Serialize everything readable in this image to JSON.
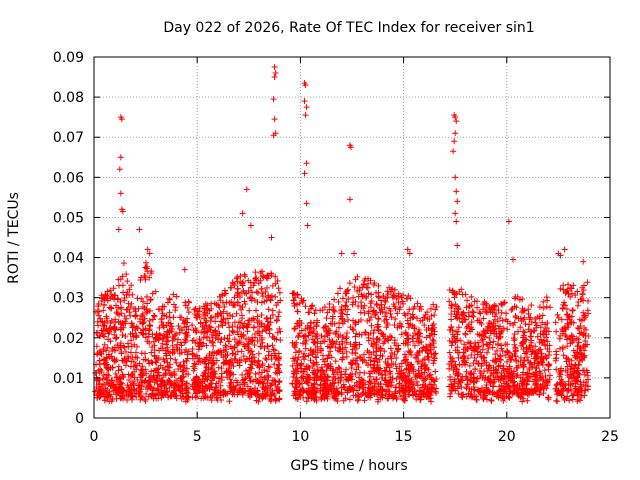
{
  "chart_data": {
    "type": "scatter",
    "title": "Day 022 of 2026, Rate Of TEC Index for receiver sin1",
    "xlabel": "GPS time / hours",
    "ylabel": "ROTI / TECUs",
    "xlim": [
      0,
      25
    ],
    "ylim": [
      0,
      0.09
    ],
    "xticks": [
      0,
      5,
      10,
      15,
      20,
      25
    ],
    "xtick_labels": [
      "0",
      "5",
      "10",
      "15",
      "20",
      "25"
    ],
    "yticks": [
      0,
      0.01,
      0.02,
      0.03,
      0.04,
      0.05,
      0.06,
      0.07,
      0.08,
      0.09
    ],
    "ytick_labels": [
      "0",
      "0.01",
      "0.02",
      "0.03",
      "0.04",
      "0.05",
      "0.06",
      "0.07",
      "0.08",
      "0.09"
    ],
    "grid": true,
    "marker": "+",
    "color": "#ff0000",
    "data_extent_hours": [
      0.05,
      23.95
    ],
    "data_gaps_hours": [
      [
        4.6,
        4.75
      ],
      [
        9.05,
        9.6
      ],
      [
        10.85,
        10.95
      ],
      [
        16.6,
        17.2
      ],
      [
        22.1,
        22.35
      ]
    ],
    "typical_band": [
      0.005,
      0.025
    ],
    "notable_points": [
      {
        "x": 1.3,
        "y": 0.075
      },
      {
        "x": 1.35,
        "y": 0.0745
      },
      {
        "x": 1.3,
        "y": 0.065
      },
      {
        "x": 1.25,
        "y": 0.062
      },
      {
        "x": 1.3,
        "y": 0.056
      },
      {
        "x": 1.35,
        "y": 0.052
      },
      {
        "x": 1.4,
        "y": 0.0515
      },
      {
        "x": 1.2,
        "y": 0.047
      },
      {
        "x": 2.2,
        "y": 0.047
      },
      {
        "x": 2.6,
        "y": 0.042
      },
      {
        "x": 2.7,
        "y": 0.041
      },
      {
        "x": 4.4,
        "y": 0.037
      },
      {
        "x": 7.4,
        "y": 0.057
      },
      {
        "x": 7.2,
        "y": 0.051
      },
      {
        "x": 7.6,
        "y": 0.048
      },
      {
        "x": 8.75,
        "y": 0.0875
      },
      {
        "x": 8.8,
        "y": 0.086
      },
      {
        "x": 8.75,
        "y": 0.085
      },
      {
        "x": 8.7,
        "y": 0.0795
      },
      {
        "x": 8.75,
        "y": 0.0745
      },
      {
        "x": 8.8,
        "y": 0.071
      },
      {
        "x": 8.7,
        "y": 0.0705
      },
      {
        "x": 8.6,
        "y": 0.045
      },
      {
        "x": 10.2,
        "y": 0.0835
      },
      {
        "x": 10.25,
        "y": 0.083
      },
      {
        "x": 10.2,
        "y": 0.079
      },
      {
        "x": 10.3,
        "y": 0.0775
      },
      {
        "x": 10.25,
        "y": 0.0755
      },
      {
        "x": 10.3,
        "y": 0.0635
      },
      {
        "x": 10.2,
        "y": 0.061
      },
      {
        "x": 10.3,
        "y": 0.0535
      },
      {
        "x": 10.35,
        "y": 0.048
      },
      {
        "x": 12.4,
        "y": 0.068
      },
      {
        "x": 12.45,
        "y": 0.0675
      },
      {
        "x": 12.4,
        "y": 0.0545
      },
      {
        "x": 12.0,
        "y": 0.041
      },
      {
        "x": 12.6,
        "y": 0.041
      },
      {
        "x": 15.2,
        "y": 0.042
      },
      {
        "x": 15.3,
        "y": 0.041
      },
      {
        "x": 17.45,
        "y": 0.0755
      },
      {
        "x": 17.5,
        "y": 0.075
      },
      {
        "x": 17.55,
        "y": 0.074
      },
      {
        "x": 17.5,
        "y": 0.071
      },
      {
        "x": 17.45,
        "y": 0.069
      },
      {
        "x": 17.4,
        "y": 0.0665
      },
      {
        "x": 17.5,
        "y": 0.06
      },
      {
        "x": 17.55,
        "y": 0.0565
      },
      {
        "x": 17.6,
        "y": 0.054
      },
      {
        "x": 17.5,
        "y": 0.051
      },
      {
        "x": 17.55,
        "y": 0.049
      },
      {
        "x": 17.6,
        "y": 0.043
      },
      {
        "x": 20.1,
        "y": 0.049
      },
      {
        "x": 20.3,
        "y": 0.0395
      },
      {
        "x": 22.5,
        "y": 0.041
      },
      {
        "x": 22.6,
        "y": 0.0405
      },
      {
        "x": 22.8,
        "y": 0.042
      },
      {
        "x": 23.7,
        "y": 0.039
      }
    ],
    "gaps": [
      [
        4.6,
        4.75
      ],
      [
        9.05,
        9.6
      ],
      [
        10.85,
        10.95
      ],
      [
        16.6,
        17.2
      ],
      [
        22.1,
        22.35
      ]
    ],
    "activity_profile": [
      {
        "x": 0.0,
        "hi": 0.03
      },
      {
        "x": 1.0,
        "hi": 0.033
      },
      {
        "x": 1.5,
        "hi": 0.04
      },
      {
        "x": 2.0,
        "hi": 0.03
      },
      {
        "x": 2.6,
        "hi": 0.042
      },
      {
        "x": 3.2,
        "hi": 0.028
      },
      {
        "x": 4.0,
        "hi": 0.032
      },
      {
        "x": 5.0,
        "hi": 0.028
      },
      {
        "x": 6.0,
        "hi": 0.03
      },
      {
        "x": 7.0,
        "hi": 0.036
      },
      {
        "x": 8.0,
        "hi": 0.037
      },
      {
        "x": 9.0,
        "hi": 0.036
      },
      {
        "x": 10.0,
        "hi": 0.03
      },
      {
        "x": 11.0,
        "hi": 0.027
      },
      {
        "x": 12.0,
        "hi": 0.033
      },
      {
        "x": 13.0,
        "hi": 0.036
      },
      {
        "x": 14.0,
        "hi": 0.033
      },
      {
        "x": 15.0,
        "hi": 0.032
      },
      {
        "x": 16.0,
        "hi": 0.027
      },
      {
        "x": 17.5,
        "hi": 0.033
      },
      {
        "x": 18.5,
        "hi": 0.03
      },
      {
        "x": 19.5,
        "hi": 0.028
      },
      {
        "x": 20.5,
        "hi": 0.031
      },
      {
        "x": 21.5,
        "hi": 0.028
      },
      {
        "x": 22.5,
        "hi": 0.033
      },
      {
        "x": 23.5,
        "hi": 0.034
      },
      {
        "x": 24.0,
        "hi": 0.034
      }
    ]
  }
}
